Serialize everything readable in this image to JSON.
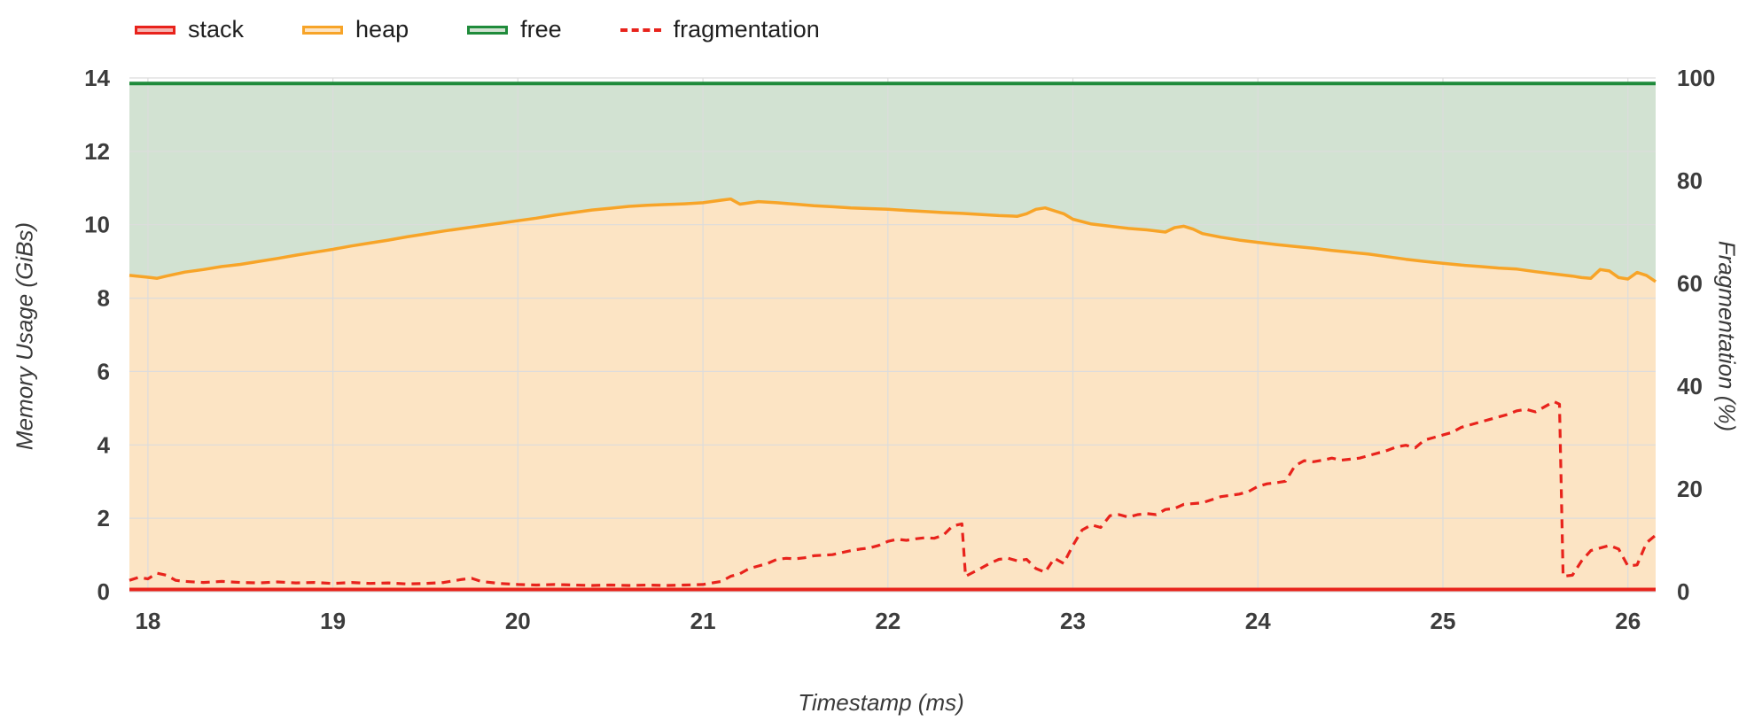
{
  "chart_data": {
    "type": "area",
    "title": "",
    "xlabel": "Timestamp (ms)",
    "ylabel_left": "Memory Usage (GiBs)",
    "ylabel_right": "Fragmentation (%)",
    "xlim": [
      17.9,
      26.15
    ],
    "ylim_left": [
      0,
      14
    ],
    "ylim_right": [
      0,
      100
    ],
    "x_ticks": [
      18,
      19,
      20,
      21,
      22,
      23,
      24,
      25,
      26
    ],
    "y_ticks_left": [
      0,
      2,
      4,
      6,
      8,
      10,
      12,
      14
    ],
    "y_ticks_right": [
      0,
      20,
      40,
      60,
      80,
      100
    ],
    "grid": true,
    "legend_position": "top-left",
    "legend": [
      {
        "label": "stack",
        "color": "#e8231c",
        "fill": "#f5b5b1",
        "style": "area"
      },
      {
        "label": "heap",
        "color": "#f7a428",
        "fill": "#fce4c4",
        "style": "area"
      },
      {
        "label": "free",
        "color": "#1f8b3b",
        "fill": "#d2e2d2",
        "style": "area"
      },
      {
        "label": "fragmentation",
        "color": "#e8231c",
        "style": "dashed"
      }
    ],
    "series": {
      "free_total_gib": 13.85,
      "stack_level_gib": 0.06,
      "heap_gib": [
        [
          17.9,
          8.62
        ],
        [
          18.0,
          8.57
        ],
        [
          18.05,
          8.54
        ],
        [
          18.1,
          8.6
        ],
        [
          18.2,
          8.71
        ],
        [
          18.3,
          8.78
        ],
        [
          18.4,
          8.86
        ],
        [
          18.5,
          8.92
        ],
        [
          18.6,
          9.0
        ],
        [
          18.7,
          9.08
        ],
        [
          18.8,
          9.17
        ],
        [
          18.9,
          9.25
        ],
        [
          19.0,
          9.33
        ],
        [
          19.1,
          9.42
        ],
        [
          19.2,
          9.5
        ],
        [
          19.3,
          9.58
        ],
        [
          19.4,
          9.67
        ],
        [
          19.5,
          9.75
        ],
        [
          19.6,
          9.83
        ],
        [
          19.7,
          9.9
        ],
        [
          19.8,
          9.97
        ],
        [
          19.9,
          10.04
        ],
        [
          20.0,
          10.11
        ],
        [
          20.1,
          10.18
        ],
        [
          20.2,
          10.26
        ],
        [
          20.3,
          10.33
        ],
        [
          20.4,
          10.4
        ],
        [
          20.5,
          10.45
        ],
        [
          20.6,
          10.5
        ],
        [
          20.7,
          10.53
        ],
        [
          20.8,
          10.55
        ],
        [
          20.9,
          10.57
        ],
        [
          21.0,
          10.6
        ],
        [
          21.1,
          10.67
        ],
        [
          21.15,
          10.7
        ],
        [
          21.2,
          10.56
        ],
        [
          21.3,
          10.63
        ],
        [
          21.4,
          10.6
        ],
        [
          21.5,
          10.56
        ],
        [
          21.6,
          10.52
        ],
        [
          21.7,
          10.49
        ],
        [
          21.8,
          10.46
        ],
        [
          21.9,
          10.44
        ],
        [
          22.0,
          10.42
        ],
        [
          22.1,
          10.39
        ],
        [
          22.2,
          10.36
        ],
        [
          22.3,
          10.33
        ],
        [
          22.4,
          10.31
        ],
        [
          22.5,
          10.28
        ],
        [
          22.6,
          10.25
        ],
        [
          22.7,
          10.23
        ],
        [
          22.75,
          10.3
        ],
        [
          22.8,
          10.42
        ],
        [
          22.85,
          10.46
        ],
        [
          22.9,
          10.38
        ],
        [
          22.95,
          10.3
        ],
        [
          23.0,
          10.15
        ],
        [
          23.1,
          10.02
        ],
        [
          23.2,
          9.96
        ],
        [
          23.3,
          9.9
        ],
        [
          23.4,
          9.86
        ],
        [
          23.5,
          9.8
        ],
        [
          23.55,
          9.92
        ],
        [
          23.6,
          9.96
        ],
        [
          23.65,
          9.88
        ],
        [
          23.7,
          9.76
        ],
        [
          23.8,
          9.66
        ],
        [
          23.9,
          9.58
        ],
        [
          24.0,
          9.52
        ],
        [
          24.1,
          9.46
        ],
        [
          24.2,
          9.41
        ],
        [
          24.3,
          9.36
        ],
        [
          24.4,
          9.3
        ],
        [
          24.5,
          9.25
        ],
        [
          24.6,
          9.2
        ],
        [
          24.7,
          9.13
        ],
        [
          24.8,
          9.06
        ],
        [
          24.9,
          9.0
        ],
        [
          25.0,
          8.95
        ],
        [
          25.1,
          8.9
        ],
        [
          25.2,
          8.86
        ],
        [
          25.3,
          8.82
        ],
        [
          25.4,
          8.79
        ],
        [
          25.5,
          8.72
        ],
        [
          25.6,
          8.66
        ],
        [
          25.7,
          8.6
        ],
        [
          25.75,
          8.56
        ],
        [
          25.8,
          8.54
        ],
        [
          25.85,
          8.78
        ],
        [
          25.9,
          8.74
        ],
        [
          25.95,
          8.56
        ],
        [
          26.0,
          8.52
        ],
        [
          26.05,
          8.7
        ],
        [
          26.1,
          8.62
        ],
        [
          26.15,
          8.45
        ]
      ],
      "fragmentation_pct": [
        [
          17.9,
          2.2
        ],
        [
          17.95,
          2.8
        ],
        [
          18.0,
          2.5
        ],
        [
          18.05,
          3.6
        ],
        [
          18.1,
          3.2
        ],
        [
          18.15,
          2.2
        ],
        [
          18.2,
          2.0
        ],
        [
          18.3,
          1.8
        ],
        [
          18.4,
          2.0
        ],
        [
          18.5,
          1.8
        ],
        [
          18.6,
          1.7
        ],
        [
          18.7,
          1.9
        ],
        [
          18.8,
          1.7
        ],
        [
          18.9,
          1.8
        ],
        [
          19.0,
          1.6
        ],
        [
          19.1,
          1.8
        ],
        [
          19.2,
          1.6
        ],
        [
          19.3,
          1.7
        ],
        [
          19.4,
          1.5
        ],
        [
          19.5,
          1.6
        ],
        [
          19.6,
          1.8
        ],
        [
          19.7,
          2.4
        ],
        [
          19.75,
          2.6
        ],
        [
          19.8,
          2.0
        ],
        [
          19.9,
          1.6
        ],
        [
          20.0,
          1.4
        ],
        [
          20.1,
          1.3
        ],
        [
          20.2,
          1.4
        ],
        [
          20.3,
          1.3
        ],
        [
          20.4,
          1.2
        ],
        [
          20.5,
          1.3
        ],
        [
          20.6,
          1.2
        ],
        [
          20.7,
          1.3
        ],
        [
          20.8,
          1.2
        ],
        [
          20.9,
          1.3
        ],
        [
          21.0,
          1.4
        ],
        [
          21.1,
          2.0
        ],
        [
          21.15,
          3.0
        ],
        [
          21.2,
          3.5
        ],
        [
          21.25,
          4.5
        ],
        [
          21.3,
          5.0
        ],
        [
          21.35,
          5.5
        ],
        [
          21.4,
          6.3
        ],
        [
          21.45,
          6.5
        ],
        [
          21.5,
          6.4
        ],
        [
          21.55,
          6.6
        ],
        [
          21.6,
          7.0
        ],
        [
          21.7,
          7.2
        ],
        [
          21.8,
          8.0
        ],
        [
          21.85,
          8.3
        ],
        [
          21.9,
          8.5
        ],
        [
          21.95,
          9.0
        ],
        [
          22.0,
          9.8
        ],
        [
          22.05,
          10.2
        ],
        [
          22.1,
          10.0
        ],
        [
          22.15,
          10.3
        ],
        [
          22.2,
          10.5
        ],
        [
          22.25,
          10.4
        ],
        [
          22.3,
          11.0
        ],
        [
          22.35,
          12.8
        ],
        [
          22.4,
          13.2
        ],
        [
          22.42,
          3.0
        ],
        [
          22.5,
          4.5
        ],
        [
          22.55,
          5.5
        ],
        [
          22.6,
          6.3
        ],
        [
          22.65,
          6.5
        ],
        [
          22.7,
          6.0
        ],
        [
          22.75,
          6.3
        ],
        [
          22.8,
          4.5
        ],
        [
          22.85,
          3.8
        ],
        [
          22.9,
          6.5
        ],
        [
          22.95,
          5.5
        ],
        [
          23.0,
          9.0
        ],
        [
          23.05,
          12.0
        ],
        [
          23.1,
          13.0
        ],
        [
          23.15,
          12.5
        ],
        [
          23.2,
          14.8
        ],
        [
          23.25,
          15.0
        ],
        [
          23.3,
          14.5
        ],
        [
          23.35,
          15.0
        ],
        [
          23.4,
          15.2
        ],
        [
          23.45,
          15.0
        ],
        [
          23.5,
          16.0
        ],
        [
          23.55,
          16.2
        ],
        [
          23.6,
          17.0
        ],
        [
          23.7,
          17.3
        ],
        [
          23.8,
          18.5
        ],
        [
          23.9,
          19.0
        ],
        [
          23.95,
          19.5
        ],
        [
          24.0,
          20.5
        ],
        [
          24.05,
          21.0
        ],
        [
          24.1,
          21.2
        ],
        [
          24.15,
          21.5
        ],
        [
          24.2,
          24.5
        ],
        [
          24.25,
          25.5
        ],
        [
          24.3,
          25.3
        ],
        [
          24.35,
          25.6
        ],
        [
          24.4,
          26.0
        ],
        [
          24.45,
          25.6
        ],
        [
          24.5,
          25.8
        ],
        [
          24.55,
          26.0
        ],
        [
          24.6,
          26.5
        ],
        [
          24.65,
          27.0
        ],
        [
          24.7,
          27.5
        ],
        [
          24.75,
          28.2
        ],
        [
          24.8,
          28.5
        ],
        [
          24.85,
          28.0
        ],
        [
          24.9,
          29.5
        ],
        [
          24.95,
          30.0
        ],
        [
          25.0,
          30.5
        ],
        [
          25.05,
          31.0
        ],
        [
          25.1,
          32.0
        ],
        [
          25.15,
          32.5
        ],
        [
          25.2,
          33.0
        ],
        [
          25.25,
          33.5
        ],
        [
          25.3,
          34.0
        ],
        [
          25.35,
          34.5
        ],
        [
          25.4,
          35.2
        ],
        [
          25.45,
          35.5
        ],
        [
          25.5,
          35.0
        ],
        [
          25.55,
          36.0
        ],
        [
          25.6,
          37.0
        ],
        [
          25.63,
          36.5
        ],
        [
          25.65,
          3.0
        ],
        [
          25.7,
          3.2
        ],
        [
          25.75,
          6.0
        ],
        [
          25.8,
          8.0
        ],
        [
          25.85,
          8.5
        ],
        [
          25.9,
          9.0
        ],
        [
          25.95,
          8.3
        ],
        [
          26.0,
          5.0
        ],
        [
          26.05,
          5.2
        ],
        [
          26.1,
          9.5
        ],
        [
          26.15,
          11.0
        ]
      ]
    },
    "colors": {
      "grid": "#dcdcdc",
      "tick_text": "#3c3c3c",
      "axis_title_text": "#3a3a3a"
    }
  }
}
